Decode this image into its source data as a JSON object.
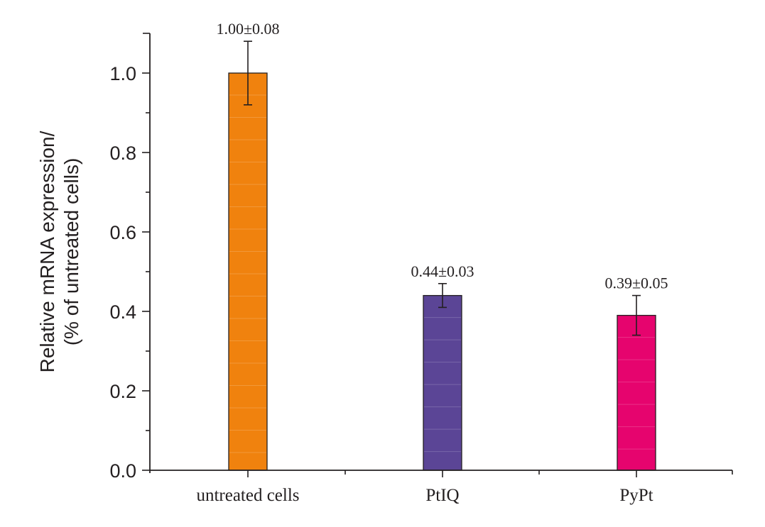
{
  "chart_data": {
    "type": "bar",
    "title": "",
    "xlabel": "",
    "ylabel": [
      "Relative mRNA expression/",
      "(% of untreated cells)"
    ],
    "categories": [
      "untreated cells",
      "PtIQ",
      "PyPt"
    ],
    "values": [
      1.0,
      0.44,
      0.39
    ],
    "errors": [
      0.08,
      0.03,
      0.05
    ],
    "data_labels": [
      "1.00±0.08",
      "0.44±0.03",
      "0.39±0.05"
    ],
    "colors": [
      "#f0820e",
      "#5b4596",
      "#e6046e"
    ],
    "ylim": [
      0,
      1.1
    ],
    "yticks": [
      0.0,
      0.2,
      0.4,
      0.6,
      0.8,
      1.0
    ],
    "ytick_labels": [
      "0.0",
      "0.2",
      "0.4",
      "0.6",
      "0.8",
      "1.0"
    ],
    "grid": false,
    "legend": "none"
  }
}
